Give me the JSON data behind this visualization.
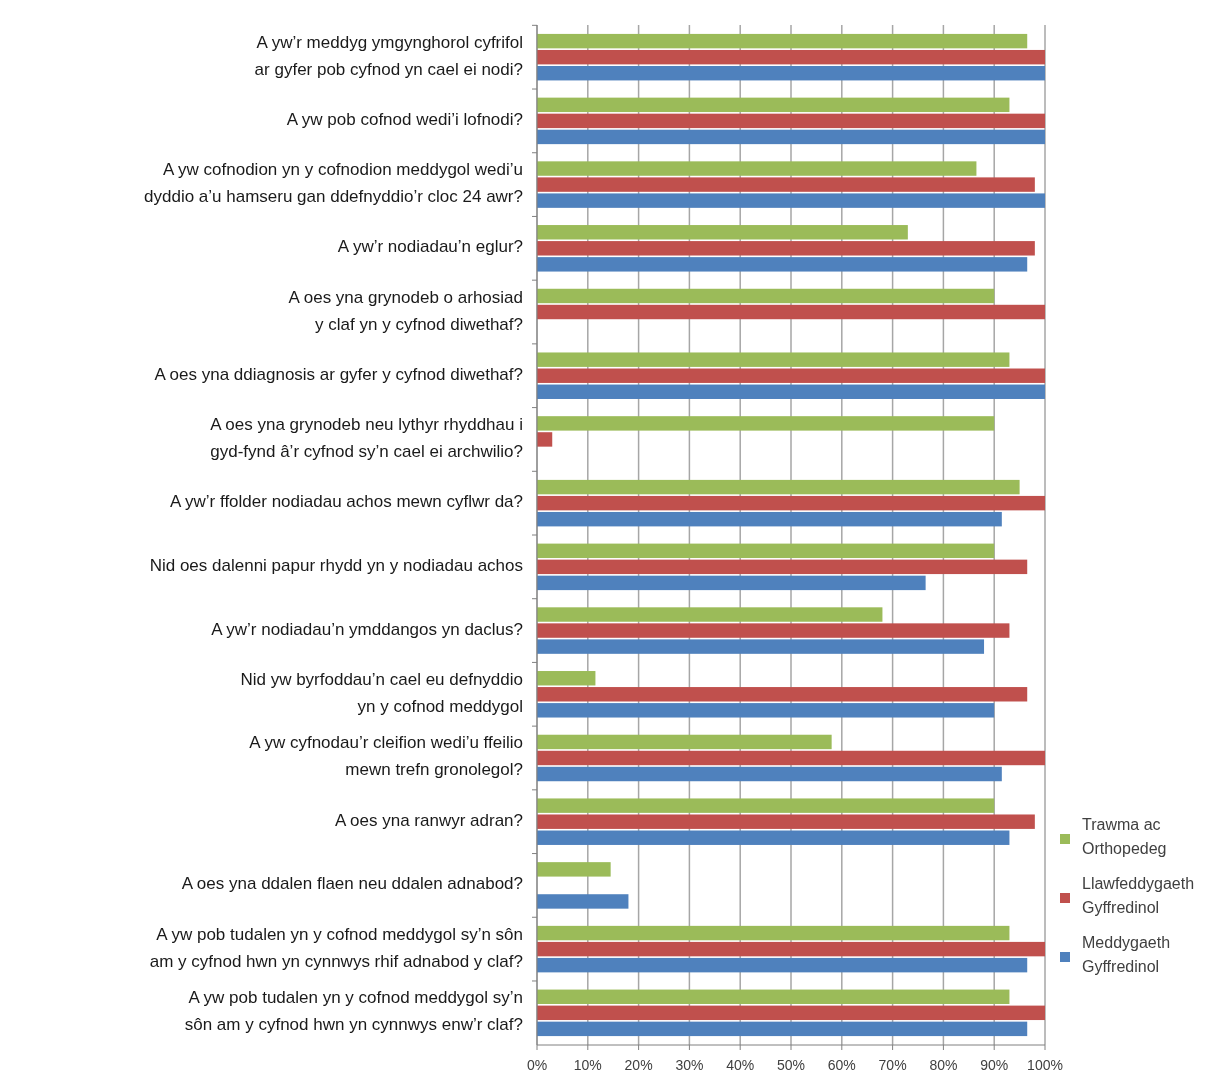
{
  "chart_data": {
    "type": "bar",
    "orientation": "horizontal",
    "categories": [
      "A yw’r meddyg ymgynghorol cyfrifol\nar gyfer pob cyfnod yn cael ei nodi?",
      "A yw pob cofnod wedi’i lofnodi?",
      "A yw cofnodion yn y cofnodion meddygol wedi’u\ndyddio a’u hamseru gan ddefnyddio’r cloc 24 awr?",
      "A yw’r nodiadau’n eglur?",
      "A oes yna grynodeb o arhosiad\ny claf yn y cyfnod diwethaf?",
      "A oes yna ddiagnosis ar gyfer y cyfnod diwethaf?",
      "A oes yna grynodeb neu lythyr rhyddhau i\ngyd-fynd â’r cyfnod sy’n cael ei archwilio?",
      "A yw’r ffolder nodiadau achos mewn cyflwr da?",
      "Nid oes dalenni papur rhydd yn y nodiadau achos",
      "A yw’r nodiadau’n ymddangos yn daclus?",
      "Nid yw byrfoddau’n cael eu defnyddio\nyn y cofnod meddygol",
      "A yw cyfnodau’r cleifion wedi’u ffeilio\nmewn trefn gronolegol?",
      "A oes yna ranwyr adran?",
      "A oes yna ddalen flaen neu ddalen adnabod?",
      "A yw pob tudalen yn y cofnod meddygol sy’n sôn\nam y cyfnod hwn yn cynnwys rhif adnabod y claf?",
      "A yw pob tudalen yn y cofnod meddygol sy’n\nsôn am y cyfnod hwn yn cynnwys enw’r claf?"
    ],
    "series": [
      {
        "name": "Trawma ac\nOrthopedeg",
        "color": "#9bbb59",
        "values": [
          96.5,
          93,
          86.5,
          73,
          90,
          93,
          90,
          95,
          90,
          68,
          11.5,
          58,
          90,
          14.5,
          93,
          93
        ]
      },
      {
        "name": "Llawfeddygaeth\nGyffredinol",
        "color": "#c0504d",
        "values": [
          100,
          100,
          98,
          98,
          100,
          100,
          3,
          100,
          96.5,
          93,
          96.5,
          100,
          98,
          null,
          100,
          100
        ]
      },
      {
        "name": "Meddygaeth\nGyffredinol",
        "color": "#4f81bd",
        "values": [
          100,
          100,
          100,
          96.5,
          null,
          100,
          null,
          91.5,
          76.5,
          88,
          90,
          91.5,
          93,
          18,
          96.5,
          96.5
        ]
      }
    ],
    "xlim": [
      0,
      100
    ],
    "xticks": [
      {
        "value": 0,
        "label": "0%"
      },
      {
        "value": 10,
        "label": "10%"
      },
      {
        "value": 20,
        "label": "20%"
      },
      {
        "value": 30,
        "label": "30%"
      },
      {
        "value": 40,
        "label": "40%"
      },
      {
        "value": 50,
        "label": "50%"
      },
      {
        "value": 60,
        "label": "60%"
      },
      {
        "value": 70,
        "label": "70%"
      },
      {
        "value": 80,
        "label": "80%"
      },
      {
        "value": 90,
        "label": "90%"
      },
      {
        "value": 100,
        "label": "100%"
      }
    ],
    "grid": "x",
    "legend": "right"
  }
}
